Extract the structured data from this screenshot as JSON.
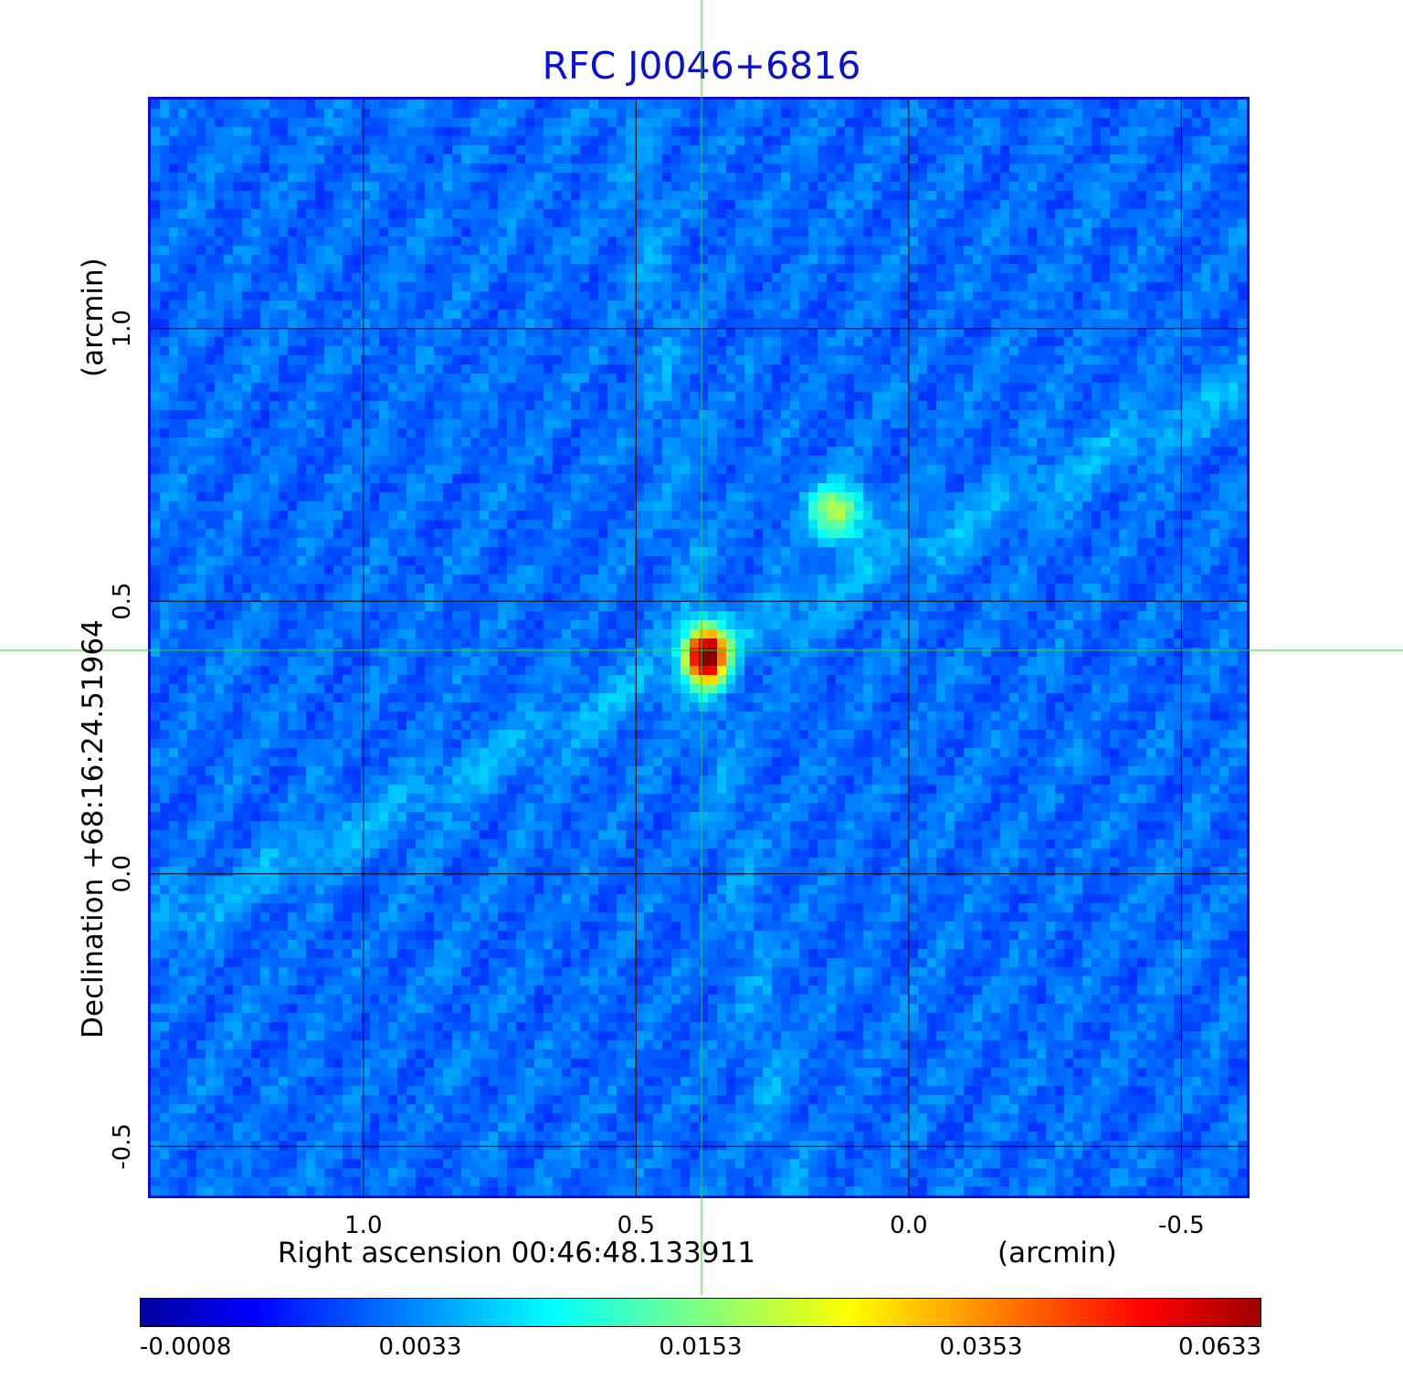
{
  "chart_data": {
    "type": "heatmap",
    "title": "RFC J0046+6816",
    "xlabel": "Right ascension  00:46:48.133911",
    "xunit": "(arcmin)",
    "ylabel": "Declination  +68:16:24.51964",
    "yunit": "(arcmin)",
    "x_ticks": [
      "1.0",
      "0.5",
      "0.0",
      "-0.5"
    ],
    "x_tick_values": [
      1.0,
      0.5,
      0.0,
      -0.5
    ],
    "xlim": [
      1.39,
      -0.62
    ],
    "y_ticks": [
      "1.0",
      "0.5",
      "0.0",
      "-0.5"
    ],
    "y_tick_values": [
      1.0,
      0.5,
      0.0,
      -0.5
    ],
    "ylim": [
      -0.59,
      1.42
    ],
    "grid": true,
    "crosshair": {
      "x": 0.38,
      "y": 0.41
    },
    "colorbar": {
      "labels": [
        "-0.0008",
        "0.0033",
        "0.0153",
        "0.0353",
        "0.0633"
      ],
      "colormap": "jet"
    },
    "sources": [
      {
        "x": 0.38,
        "y": 0.41,
        "peak": 0.0633
      },
      {
        "x": 0.14,
        "y": 0.67,
        "peak": 0.0153
      }
    ],
    "colors": {
      "title": "#0a10d2",
      "frame": "#0a10d2",
      "crosshair": "#22dd22",
      "grid": "#000000"
    }
  }
}
